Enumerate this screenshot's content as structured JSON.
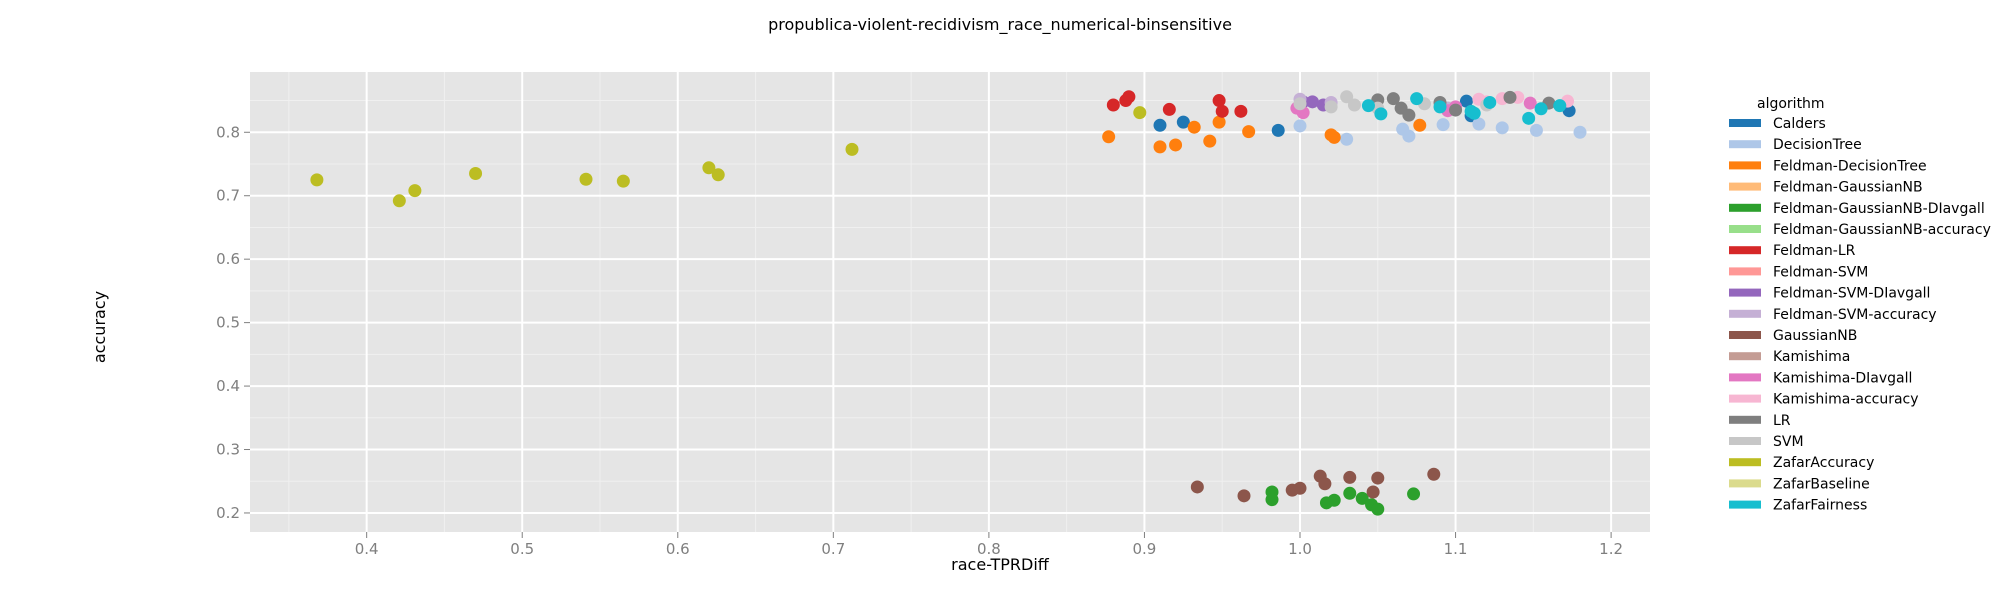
{
  "chart_data": {
    "type": "scatter",
    "title": "propublica-violent-recidivism_race_numerical-binsensitive",
    "xlabel": "race-TPRDiff",
    "ylabel": "accuracy",
    "xlim": [
      0.325,
      1.225
    ],
    "ylim": [
      0.17,
      0.895
    ],
    "xticks": [
      "0.4",
      "0.5",
      "0.6",
      "0.7",
      "0.8",
      "0.9",
      "1.0",
      "1.1",
      "1.2"
    ],
    "yticks": [
      "0.2",
      "0.3",
      "0.4",
      "0.5",
      "0.6",
      "0.7",
      "0.8"
    ],
    "grid": true,
    "legend": {
      "title": "algorithm",
      "position": "right"
    },
    "series": [
      {
        "name": "Calders",
        "color": "#1f77b4",
        "points": [
          [
            0.91,
            0.811
          ],
          [
            0.925,
            0.816
          ],
          [
            0.986,
            0.803
          ],
          [
            1.107,
            0.849
          ],
          [
            1.11,
            0.826
          ],
          [
            1.173,
            0.834
          ]
        ]
      },
      {
        "name": "DecisionTree",
        "color": "#aec7e8",
        "points": [
          [
            1.0,
            0.81
          ],
          [
            1.03,
            0.789
          ],
          [
            1.066,
            0.805
          ],
          [
            1.07,
            0.794
          ],
          [
            1.092,
            0.812
          ],
          [
            1.115,
            0.813
          ],
          [
            1.13,
            0.807
          ],
          [
            1.152,
            0.803
          ],
          [
            1.18,
            0.8
          ]
        ]
      },
      {
        "name": "Feldman-DecisionTree",
        "color": "#ff7f0e",
        "points": [
          [
            0.877,
            0.793
          ],
          [
            0.91,
            0.777
          ],
          [
            0.92,
            0.78
          ],
          [
            0.932,
            0.808
          ],
          [
            0.942,
            0.786
          ],
          [
            0.948,
            0.816
          ],
          [
            0.967,
            0.801
          ],
          [
            1.02,
            0.796
          ],
          [
            1.022,
            0.792
          ],
          [
            1.077,
            0.811
          ]
        ]
      },
      {
        "name": "Feldman-GaussianNB",
        "color": "#ffbb78",
        "points": []
      },
      {
        "name": "Feldman-GaussianNB-DIavgall",
        "color": "#2ca02c",
        "points": [
          [
            0.982,
            0.233
          ],
          [
            0.982,
            0.221
          ],
          [
            1.017,
            0.216
          ],
          [
            1.022,
            0.22
          ],
          [
            1.032,
            0.231
          ],
          [
            1.04,
            0.223
          ],
          [
            1.046,
            0.213
          ],
          [
            1.05,
            0.206
          ],
          [
            1.073,
            0.23
          ]
        ]
      },
      {
        "name": "Feldman-GaussianNB-accuracy",
        "color": "#98df8a",
        "points": []
      },
      {
        "name": "Feldman-LR",
        "color": "#d62728",
        "points": [
          [
            0.88,
            0.843
          ],
          [
            0.888,
            0.85
          ],
          [
            0.89,
            0.856
          ],
          [
            0.916,
            0.836
          ],
          [
            0.948,
            0.85
          ],
          [
            0.95,
            0.833
          ],
          [
            0.962,
            0.833
          ]
        ]
      },
      {
        "name": "Feldman-SVM",
        "color": "#ff9896",
        "points": []
      },
      {
        "name": "Feldman-SVM-DIavgall",
        "color": "#9467bd",
        "points": [
          [
            1.002,
            0.848
          ],
          [
            1.008,
            0.848
          ],
          [
            1.015,
            0.843
          ]
        ]
      },
      {
        "name": "Feldman-SVM-accuracy",
        "color": "#c5b0d5",
        "points": [
          [
            1.0,
            0.852
          ],
          [
            1.02,
            0.847
          ],
          [
            1.095,
            0.838
          ]
        ]
      },
      {
        "name": "GaussianNB",
        "color": "#8c564b",
        "points": [
          [
            0.934,
            0.241
          ],
          [
            0.964,
            0.227
          ],
          [
            0.995,
            0.236
          ],
          [
            1.0,
            0.239
          ],
          [
            1.013,
            0.258
          ],
          [
            1.016,
            0.246
          ],
          [
            1.032,
            0.256
          ],
          [
            1.047,
            0.233
          ],
          [
            1.05,
            0.255
          ],
          [
            1.086,
            0.261
          ]
        ]
      },
      {
        "name": "Kamishima",
        "color": "#c49c94",
        "points": []
      },
      {
        "name": "Kamishima-DIavgall",
        "color": "#e377c2",
        "points": [
          [
            0.998,
            0.838
          ],
          [
            1.002,
            0.831
          ],
          [
            1.095,
            0.834
          ],
          [
            1.1,
            0.84
          ],
          [
            1.148,
            0.846
          ]
        ]
      },
      {
        "name": "Kamishima-accuracy",
        "color": "#f7b6d2",
        "points": [
          [
            1.115,
            0.852
          ],
          [
            1.12,
            0.848
          ],
          [
            1.13,
            0.853
          ],
          [
            1.14,
            0.855
          ],
          [
            1.172,
            0.849
          ]
        ]
      },
      {
        "name": "LR",
        "color": "#7f7f7f",
        "points": [
          [
            1.05,
            0.851
          ],
          [
            1.06,
            0.853
          ],
          [
            1.065,
            0.838
          ],
          [
            1.07,
            0.827
          ],
          [
            1.09,
            0.847
          ],
          [
            1.1,
            0.835
          ],
          [
            1.135,
            0.855
          ],
          [
            1.16,
            0.846
          ]
        ]
      },
      {
        "name": "SVM",
        "color": "#c7c7c7",
        "points": [
          [
            1.0,
            0.845
          ],
          [
            1.02,
            0.84
          ],
          [
            1.03,
            0.856
          ],
          [
            1.035,
            0.843
          ],
          [
            1.05,
            0.838
          ],
          [
            1.08,
            0.845
          ],
          [
            1.12,
            0.843
          ]
        ]
      },
      {
        "name": "ZafarAccuracy",
        "color": "#bcbd22",
        "points": [
          [
            0.368,
            0.725
          ],
          [
            0.421,
            0.692
          ],
          [
            0.431,
            0.708
          ],
          [
            0.47,
            0.735
          ],
          [
            0.541,
            0.726
          ],
          [
            0.565,
            0.723
          ],
          [
            0.62,
            0.744
          ],
          [
            0.626,
            0.733
          ],
          [
            0.712,
            0.773
          ],
          [
            0.897,
            0.831
          ]
        ]
      },
      {
        "name": "ZafarBaseline",
        "color": "#dbdb8d",
        "points": []
      },
      {
        "name": "ZafarFairness",
        "color": "#17becf",
        "points": [
          [
            1.044,
            0.842
          ],
          [
            1.052,
            0.829
          ],
          [
            1.075,
            0.853
          ],
          [
            1.09,
            0.84
          ],
          [
            1.11,
            0.833
          ],
          [
            1.112,
            0.83
          ],
          [
            1.122,
            0.847
          ],
          [
            1.147,
            0.822
          ],
          [
            1.155,
            0.837
          ],
          [
            1.167,
            0.842
          ]
        ]
      }
    ]
  }
}
